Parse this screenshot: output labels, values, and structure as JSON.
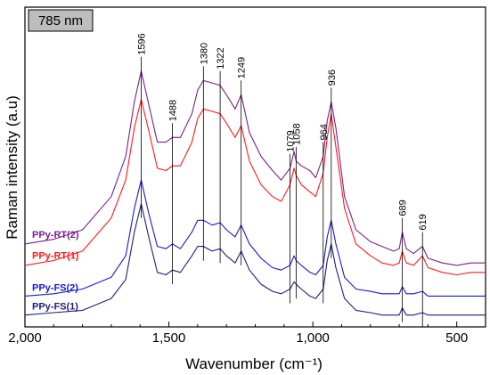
{
  "chart_data": {
    "type": "line",
    "badge": "785 nm",
    "xlabel": "Wavenumber (cm⁻¹)",
    "ylabel": "Raman intensity (a.u)",
    "xlim": [
      2000,
      400
    ],
    "x_reversed": true,
    "y_ticks_shown": false,
    "x_ticks": [
      2000,
      1500,
      1000,
      500
    ],
    "x_tick_labels": [
      "2,000",
      "1,500",
      "1,000",
      "500"
    ],
    "peak_lines": [
      {
        "label": "1596",
        "x": 1596
      },
      {
        "label": "1488",
        "x": 1488
      },
      {
        "label": "1380",
        "x": 1380
      },
      {
        "label": "1322",
        "x": 1322
      },
      {
        "label": "1249",
        "x": 1249
      },
      {
        "label": "1079",
        "x": 1079
      },
      {
        "label": "1058",
        "x": 1058
      },
      {
        "label": "964",
        "x": 964
      },
      {
        "label": "936",
        "x": 936
      },
      {
        "label": "689",
        "x": 689
      },
      {
        "label": "619",
        "x": 619
      }
    ],
    "series": [
      {
        "name": "PPy-RT(2)",
        "color": "#7b1f8c",
        "x": [
          2000,
          1900,
          1800,
          1700,
          1650,
          1620,
          1596,
          1570,
          1540,
          1510,
          1488,
          1460,
          1420,
          1400,
          1380,
          1350,
          1322,
          1300,
          1270,
          1249,
          1220,
          1180,
          1140,
          1110,
          1079,
          1065,
          1058,
          1040,
          1010,
          990,
          964,
          950,
          936,
          920,
          890,
          850,
          800,
          760,
          720,
          700,
          689,
          675,
          650,
          619,
          600,
          550,
          500,
          450,
          400
        ],
        "values": [
          0.25,
          0.27,
          0.31,
          0.45,
          0.62,
          0.85,
          0.98,
          0.84,
          0.68,
          0.68,
          0.7,
          0.7,
          0.8,
          0.9,
          0.94,
          0.93,
          0.92,
          0.88,
          0.82,
          0.88,
          0.72,
          0.62,
          0.56,
          0.52,
          0.57,
          0.64,
          0.6,
          0.58,
          0.56,
          0.53,
          0.62,
          0.77,
          0.85,
          0.74,
          0.45,
          0.31,
          0.26,
          0.24,
          0.22,
          0.23,
          0.3,
          0.23,
          0.21,
          0.24,
          0.19,
          0.17,
          0.16,
          0.17,
          0.17
        ]
      },
      {
        "name": "PPy-RT(1)",
        "color": "#ff1a1a",
        "x": [
          2000,
          1900,
          1800,
          1700,
          1650,
          1620,
          1596,
          1570,
          1540,
          1510,
          1488,
          1460,
          1420,
          1400,
          1380,
          1350,
          1322,
          1300,
          1270,
          1249,
          1220,
          1180,
          1140,
          1110,
          1079,
          1065,
          1058,
          1040,
          1010,
          990,
          964,
          950,
          936,
          920,
          890,
          850,
          800,
          760,
          720,
          700,
          689,
          675,
          650,
          619,
          600,
          550,
          500,
          450,
          400
        ],
        "values": [
          0.16,
          0.18,
          0.22,
          0.36,
          0.52,
          0.74,
          0.86,
          0.73,
          0.57,
          0.56,
          0.58,
          0.58,
          0.68,
          0.78,
          0.82,
          0.81,
          0.8,
          0.76,
          0.7,
          0.75,
          0.6,
          0.5,
          0.45,
          0.43,
          0.5,
          0.57,
          0.54,
          0.5,
          0.47,
          0.45,
          0.55,
          0.7,
          0.8,
          0.66,
          0.4,
          0.25,
          0.2,
          0.17,
          0.16,
          0.17,
          0.22,
          0.17,
          0.16,
          0.2,
          0.15,
          0.13,
          0.12,
          0.13,
          0.13
        ]
      },
      {
        "name": "PPy-FS(2)",
        "color": "#1a1acc",
        "x": [
          2000,
          1900,
          1800,
          1700,
          1650,
          1620,
          1596,
          1570,
          1540,
          1510,
          1488,
          1460,
          1420,
          1400,
          1380,
          1350,
          1322,
          1300,
          1270,
          1249,
          1220,
          1180,
          1140,
          1110,
          1079,
          1065,
          1058,
          1040,
          1010,
          990,
          964,
          950,
          936,
          920,
          890,
          850,
          800,
          760,
          720,
          700,
          689,
          675,
          650,
          619,
          600,
          550,
          500,
          450,
          400
        ],
        "values": [
          0.03,
          0.04,
          0.06,
          0.11,
          0.2,
          0.4,
          0.52,
          0.38,
          0.24,
          0.23,
          0.25,
          0.23,
          0.3,
          0.35,
          0.35,
          0.33,
          0.34,
          0.31,
          0.28,
          0.33,
          0.25,
          0.19,
          0.15,
          0.14,
          0.16,
          0.2,
          0.18,
          0.16,
          0.13,
          0.12,
          0.16,
          0.28,
          0.35,
          0.25,
          0.11,
          0.06,
          0.05,
          0.04,
          0.04,
          0.04,
          0.07,
          0.04,
          0.04,
          0.05,
          0.03,
          0.03,
          0.03,
          0.03,
          0.03
        ]
      },
      {
        "name": "PPy-FS(1)",
        "color": "#1f1f7a",
        "x": [
          2000,
          1900,
          1800,
          1700,
          1650,
          1620,
          1596,
          1570,
          1540,
          1510,
          1488,
          1460,
          1420,
          1400,
          1380,
          1350,
          1322,
          1300,
          1270,
          1249,
          1220,
          1180,
          1140,
          1110,
          1079,
          1065,
          1058,
          1040,
          1010,
          990,
          964,
          950,
          936,
          920,
          890,
          850,
          800,
          760,
          720,
          700,
          689,
          675,
          650,
          619,
          600,
          550,
          500,
          450,
          400
        ],
        "values": [
          -0.05,
          -0.04,
          -0.03,
          0.02,
          0.1,
          0.3,
          0.42,
          0.28,
          0.13,
          0.12,
          0.14,
          0.13,
          0.2,
          0.24,
          0.24,
          0.22,
          0.23,
          0.2,
          0.17,
          0.22,
          0.14,
          0.08,
          0.05,
          0.04,
          0.06,
          0.09,
          0.08,
          0.06,
          0.03,
          0.02,
          0.06,
          0.18,
          0.25,
          0.15,
          0.02,
          -0.03,
          -0.04,
          -0.05,
          -0.05,
          -0.05,
          -0.02,
          -0.05,
          -0.05,
          -0.04,
          -0.05,
          -0.05,
          -0.05,
          -0.05,
          -0.05
        ]
      }
    ],
    "ylim": [
      -0.1,
      1.25
    ]
  }
}
